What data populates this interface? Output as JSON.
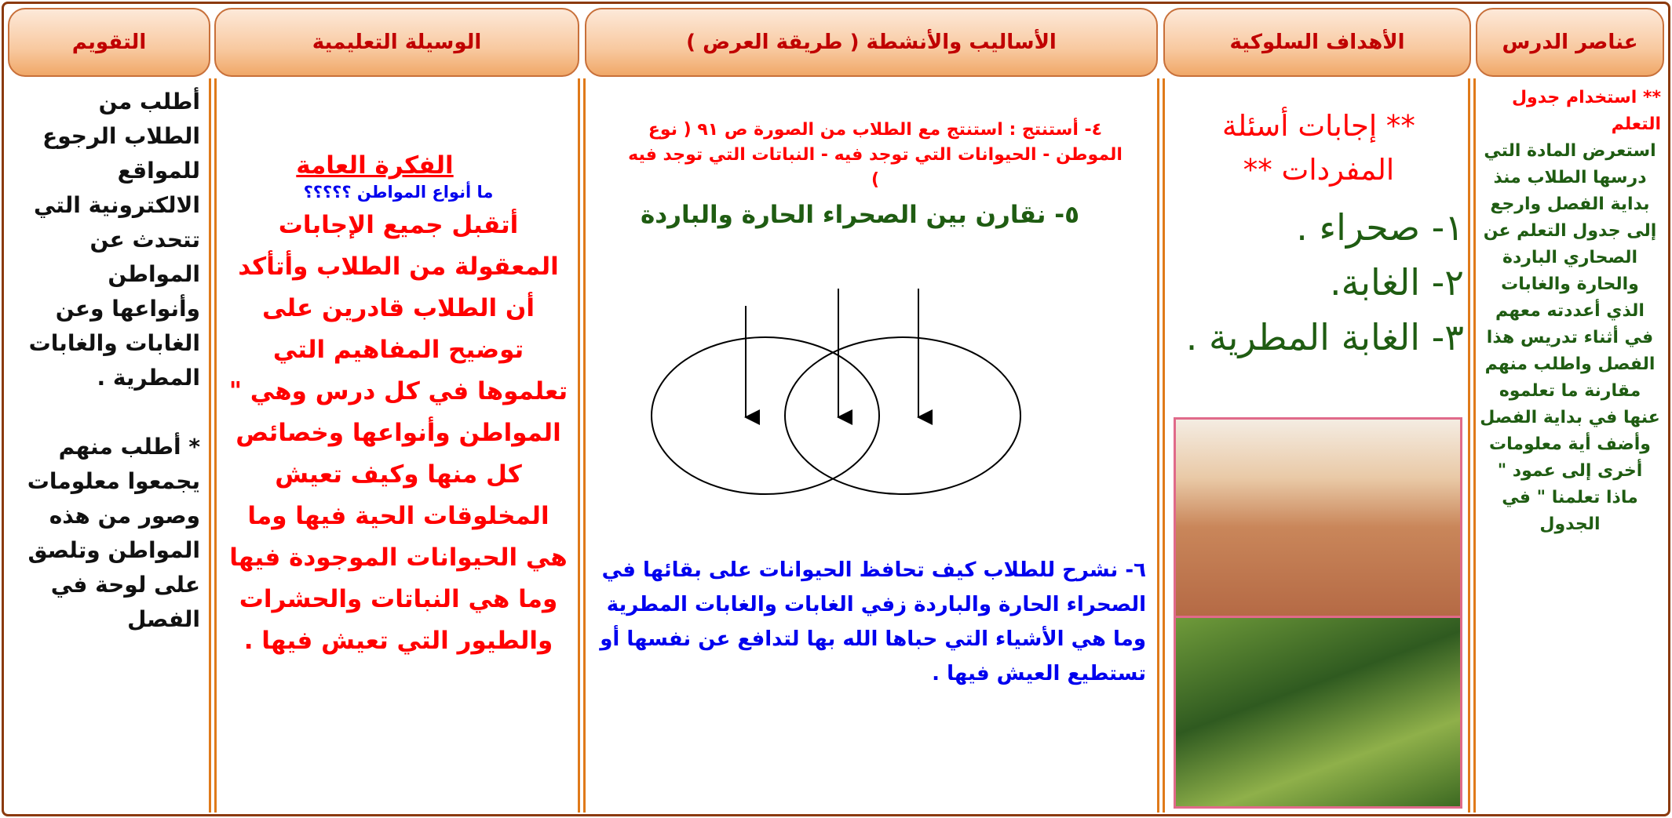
{
  "headers": [
    "عناصر الدرس",
    "الأهداف السلوكية",
    "الأساليب والأنشطة ( طريقة العرض )",
    "الوسيلة التعليمية",
    "التقويم"
  ],
  "lesson_elements": {
    "heading": "** استخدام جدول التعلم",
    "body": "استعرض المادة التي درسها الطلاب منذ بداية الفصل وارجع إلى جدول التعلم عن الصحاري الباردة والحارة والغابات الذي أعددته معهم في أثناء تدريس هذا الفصل واطلب منهم مقارنة ما تعلموه عنها في بداية الفصل وأضف أية معلومات أخرى إلى عمود \" ماذا تعلمنا \" في الجدول"
  },
  "objectives": {
    "heading": "** إجابات أسئلة المفردات **",
    "items": [
      "١- صحراء .",
      "٢- الغابة.",
      "٣- الغابة المطرية ."
    ]
  },
  "activities": {
    "step4": "٤- أستنتج : استنتج مع الطلاب من الصورة ص ٩١ ( نوع الموطن - الحيوانات التي توجد فيه - النباتات التي توجد فيه )",
    "step5": "٥- نقارن بين الصحراء الحارة والباردة",
    "step6": "٦- نشرح للطلاب كيف تحافظ الحيوانات على بقائها في الصحراء الحارة والباردة زفي الغابات والغابات المطرية وما هي الأشياء التي حباها الله بها لتدافع عن نفسها أو تستطيع العيش فيها ."
  },
  "teaching_aids": {
    "heading": "الفكرة العامة",
    "question": "ما أنواع المواطن ؟؟؟؟؟",
    "body": "أتقبل جميع الإجابات المعقولة من الطلاب وأتأكد أن الطلاب قادرين على توضيح المفاهيم التي تعلموها في كل درس وهي \" المواطن وأنواعها وخصائص كل منها وكيف تعيش المخلوقات الحية فيها وما هي الحيوانات الموجودة فيها وما هي النباتات والحشرات والطيور التي تعيش فيها ."
  },
  "evaluation": {
    "item1": "أطلب من الطلاب الرجوع للمواقع الالكترونية التي تتحدث عن المواطن وأنواعها وعن الغابات والغابات المطرية .",
    "item2": "* أطلب منهم يجمعوا معلومات وصور من هذه المواطن وتلصق على لوحة في الفصل"
  }
}
